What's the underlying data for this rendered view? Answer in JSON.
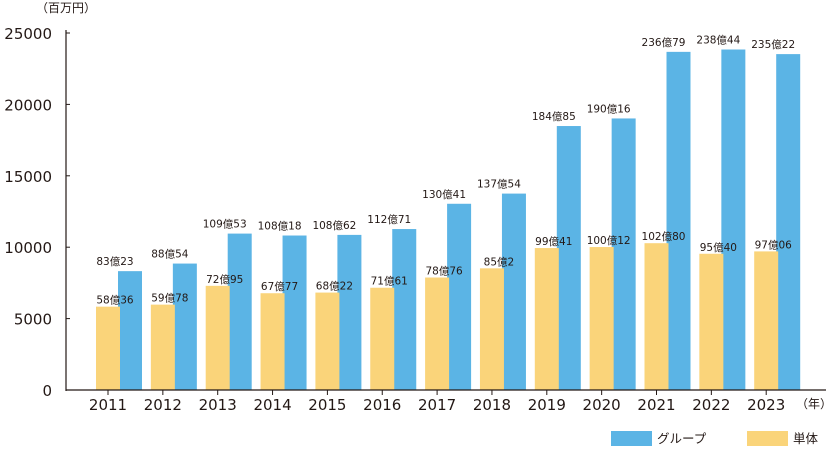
{
  "chart_data": {
    "type": "bar",
    "y_unit_label": "（百万円）",
    "x_unit_label": "（年）",
    "categories": [
      "2011",
      "2012",
      "2013",
      "2014",
      "2015",
      "2016",
      "2017",
      "2018",
      "2019",
      "2020",
      "2021",
      "2022",
      "2023"
    ],
    "ylim": [
      0,
      25000
    ],
    "yticks": [
      0,
      5000,
      10000,
      15000,
      20000,
      25000
    ],
    "grid": false,
    "legend_position": "bottom-right",
    "series": [
      {
        "name": "グループ",
        "color": "#5bb4e5",
        "values": [
          8323,
          8854,
          10953,
          10818,
          10862,
          11271,
          13041,
          13754,
          18485,
          19016,
          23679,
          23844,
          23522
        ],
        "labels": [
          "83億23",
          "88億54",
          "109億53",
          "108億18",
          "108億62",
          "112億71",
          "130億41",
          "137億54",
          "184億85",
          "190億16",
          "236億79",
          "238億44",
          "235億22"
        ]
      },
      {
        "name": "単体",
        "color": "#fad47a",
        "values": [
          5836,
          5978,
          7295,
          6777,
          6822,
          7161,
          7876,
          8520,
          9941,
          10012,
          10280,
          9540,
          9706
        ],
        "labels": [
          "58億36",
          "59億78",
          "72億95",
          "67億77",
          "68億22",
          "71億61",
          "78億76",
          "85億2",
          "99億41",
          "100億12",
          "102億80",
          "95億40",
          "97億06"
        ]
      }
    ]
  }
}
